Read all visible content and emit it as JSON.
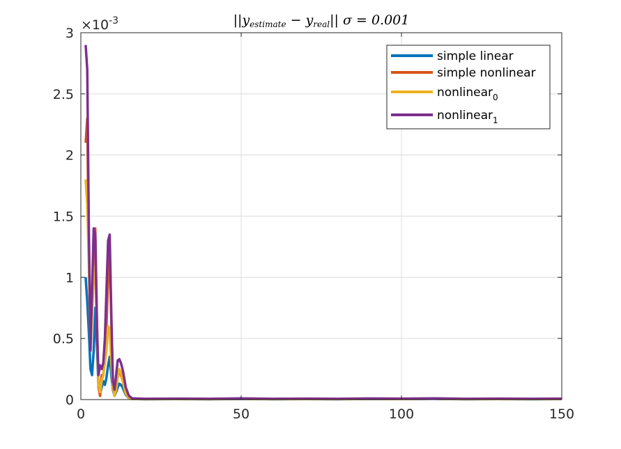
{
  "chart_data": {
    "type": "line",
    "title": {
      "norm_open": "||",
      "y1_base": "y",
      "y1_sub": "estimate",
      "minus": " − ",
      "y2_base": "y",
      "y2_sub": "real",
      "norm_close": "||",
      "sigma_part": " σ = 0.001"
    },
    "xlabel": "",
    "ylabel": "",
    "xlim": [
      0,
      150
    ],
    "ylim": [
      0,
      0.003
    ],
    "x_ticks": [
      0,
      50,
      100,
      150
    ],
    "x_tick_labels": [
      "0",
      "50",
      "100",
      "150"
    ],
    "y_ticks": [
      0,
      0.0005,
      0.001,
      0.0015,
      0.002,
      0.0025,
      0.003
    ],
    "y_tick_labels": [
      "0",
      "0.5",
      "1",
      "1.5",
      "2",
      "2.5",
      "3"
    ],
    "y_exponent": {
      "base": "×10",
      "power": "-3"
    },
    "grid": true,
    "legend_position": "top-right",
    "series": [
      {
        "name": "simple linear",
        "color": "#0072BD",
        "points": [
          [
            1.5,
            0.001
          ],
          [
            2,
            0.0008
          ],
          [
            2.5,
            0.00055
          ],
          [
            3,
            0.00025
          ],
          [
            3.5,
            0.0002
          ],
          [
            4,
            0.0004
          ],
          [
            4.5,
            0.00075
          ],
          [
            5,
            0.00045
          ],
          [
            5.5,
            0.0001
          ],
          [
            6,
            5e-05
          ],
          [
            6.5,
            0.0001
          ],
          [
            7,
            0.00015
          ],
          [
            7.5,
            0.00012
          ],
          [
            8,
            0.00018
          ],
          [
            8.5,
            0.00028
          ],
          [
            9,
            0.00035
          ],
          [
            9.5,
            0.0002
          ],
          [
            10,
            8e-05
          ],
          [
            10.5,
            3e-05
          ],
          [
            11,
            6e-05
          ],
          [
            11.5,
            0.0001
          ],
          [
            12,
            0.00013
          ],
          [
            12.5,
            0.00012
          ],
          [
            13,
            0.0001
          ],
          [
            13.5,
            7e-05
          ],
          [
            14,
            4e-05
          ],
          [
            15,
            1e-05
          ],
          [
            16,
            5e-06
          ],
          [
            20,
            3e-06
          ],
          [
            30,
            4e-06
          ],
          [
            40,
            3e-06
          ],
          [
            50,
            5e-06
          ],
          [
            60,
            3e-06
          ],
          [
            70,
            4e-06
          ],
          [
            80,
            3e-06
          ],
          [
            90,
            5e-06
          ],
          [
            100,
            4e-06
          ],
          [
            110,
            6e-06
          ],
          [
            120,
            3e-06
          ],
          [
            130,
            4e-06
          ],
          [
            140,
            3e-06
          ],
          [
            150,
            4e-06
          ]
        ]
      },
      {
        "name": "simple nonlinear",
        "color": "#D95319",
        "points": [
          [
            1.5,
            0.0021
          ],
          [
            2,
            0.0023
          ],
          [
            2.5,
            0.0012
          ],
          [
            3,
            0.0005
          ],
          [
            3.5,
            0.0008
          ],
          [
            4,
            0.00125
          ],
          [
            4.5,
            0.0014
          ],
          [
            5,
            0.0007
          ],
          [
            5.5,
            0.0001
          ],
          [
            6,
            3e-05
          ],
          [
            6.5,
            0.0002
          ],
          [
            7,
            0.0002
          ],
          [
            7.5,
            0.00035
          ],
          [
            8,
            0.0006
          ],
          [
            8.5,
            0.001
          ],
          [
            9,
            0.0012
          ],
          [
            9.5,
            0.00065
          ],
          [
            10,
            0.00015
          ],
          [
            10.5,
            3e-05
          ],
          [
            11,
            0.0001
          ],
          [
            11.5,
            0.0002
          ],
          [
            12,
            0.00022
          ],
          [
            12.5,
            0.0002
          ],
          [
            13,
            0.00016
          ],
          [
            13.5,
            0.0001
          ],
          [
            14,
            5e-05
          ],
          [
            15,
            1e-05
          ],
          [
            16,
            6e-06
          ],
          [
            20,
            4e-06
          ],
          [
            30,
            6e-06
          ],
          [
            40,
            4e-06
          ],
          [
            50,
            7e-06
          ],
          [
            60,
            4e-06
          ],
          [
            70,
            5e-06
          ],
          [
            80,
            4e-06
          ],
          [
            90,
            6e-06
          ],
          [
            100,
            5e-06
          ],
          [
            110,
            8e-06
          ],
          [
            120,
            4e-06
          ],
          [
            130,
            5e-06
          ],
          [
            140,
            4e-06
          ],
          [
            150,
            5e-06
          ]
        ]
      },
      {
        "name": "nonlinear",
        "name_sub": "0",
        "color": "#EDB120",
        "points": [
          [
            1.5,
            0.0018
          ],
          [
            2,
            0.0016
          ],
          [
            2.5,
            0.0011
          ],
          [
            3,
            0.0004
          ],
          [
            3.5,
            0.0007
          ],
          [
            4,
            0.001
          ],
          [
            4.5,
            0.0011
          ],
          [
            5,
            0.0006
          ],
          [
            5.5,
            0.00012
          ],
          [
            6,
            6e-05
          ],
          [
            6.5,
            0.00015
          ],
          [
            7,
            0.0002
          ],
          [
            7.5,
            0.0003
          ],
          [
            8,
            0.0004
          ],
          [
            8.5,
            0.0006
          ],
          [
            9,
            0.00058
          ],
          [
            9.5,
            0.0003
          ],
          [
            10,
            0.0001
          ],
          [
            10.5,
            3e-05
          ],
          [
            11,
            8e-05
          ],
          [
            11.5,
            0.00018
          ],
          [
            12,
            0.00025
          ],
          [
            12.5,
            0.00022
          ],
          [
            13,
            0.00016
          ],
          [
            13.5,
            0.0001
          ],
          [
            14,
            5e-05
          ],
          [
            15,
            1e-05
          ],
          [
            16,
            5e-06
          ],
          [
            20,
            4e-06
          ],
          [
            30,
            5e-06
          ],
          [
            40,
            4e-06
          ],
          [
            50,
            6e-06
          ],
          [
            60,
            4e-06
          ],
          [
            70,
            5e-06
          ],
          [
            80,
            4e-06
          ],
          [
            90,
            6e-06
          ],
          [
            100,
            5e-06
          ],
          [
            110,
            7e-06
          ],
          [
            120,
            4e-06
          ],
          [
            130,
            5e-06
          ],
          [
            140,
            4e-06
          ],
          [
            150,
            5e-06
          ]
        ]
      },
      {
        "name": "nonlinear",
        "name_sub": "1",
        "color": "#7E2F8E",
        "points": [
          [
            1.5,
            0.0029
          ],
          [
            2,
            0.0027
          ],
          [
            2.5,
            0.0014
          ],
          [
            3,
            0.0004
          ],
          [
            3.5,
            0.0009
          ],
          [
            4,
            0.0014
          ],
          [
            4.5,
            0.00135
          ],
          [
            5,
            0.0006
          ],
          [
            5.5,
            0.0002
          ],
          [
            6,
            0.00028
          ],
          [
            6.5,
            0.00025
          ],
          [
            7,
            0.0003
          ],
          [
            7.5,
            0.0005
          ],
          [
            8,
            0.0009
          ],
          [
            8.5,
            0.0013
          ],
          [
            9,
            0.00135
          ],
          [
            9.5,
            0.0007
          ],
          [
            10,
            0.00015
          ],
          [
            10.5,
            8e-05
          ],
          [
            11,
            0.0002
          ],
          [
            11.5,
            0.00032
          ],
          [
            12,
            0.00033
          ],
          [
            12.5,
            0.0003
          ],
          [
            13,
            0.00025
          ],
          [
            13.5,
            0.00018
          ],
          [
            14,
            0.0001
          ],
          [
            15,
            3e-05
          ],
          [
            16,
            1e-05
          ],
          [
            20,
            6e-06
          ],
          [
            30,
            8e-06
          ],
          [
            40,
            6e-06
          ],
          [
            50,
            1e-05
          ],
          [
            60,
            6e-06
          ],
          [
            70,
            8e-06
          ],
          [
            80,
            6e-06
          ],
          [
            90,
            9e-06
          ],
          [
            100,
            8e-06
          ],
          [
            110,
            1e-05
          ],
          [
            120,
            6e-06
          ],
          [
            130,
            8e-06
          ],
          [
            140,
            6e-06
          ],
          [
            150,
            8e-06
          ]
        ]
      }
    ]
  }
}
